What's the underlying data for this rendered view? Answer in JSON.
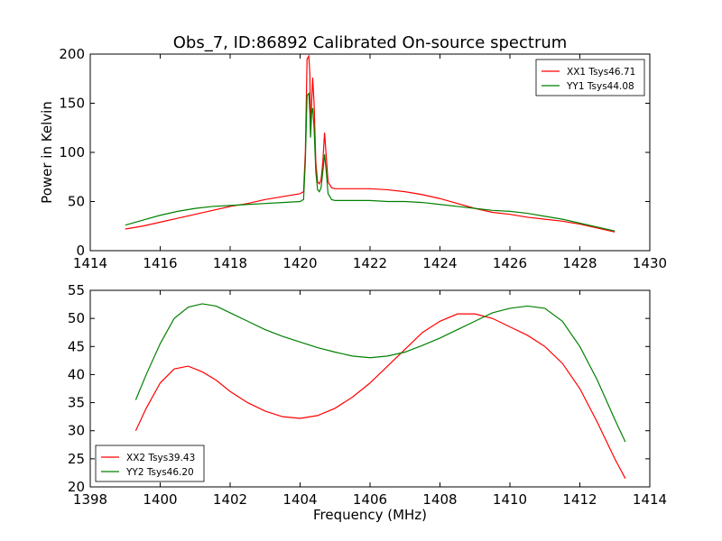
{
  "title": "Obs_7, ID:86892 Calibrated On-source spectrum",
  "chart_data": [
    {
      "type": "line",
      "ylabel": "Power in Kelvin",
      "xlabel": "",
      "xlim": [
        1414,
        1430
      ],
      "ylim": [
        0,
        200
      ],
      "xticks": [
        1414,
        1416,
        1418,
        1420,
        1422,
        1424,
        1426,
        1428,
        1430
      ],
      "yticks": [
        0,
        50,
        100,
        150,
        200
      ],
      "grid": false,
      "legend": "top-right",
      "series": [
        {
          "name": "XX1 Tsys46.71",
          "color": "#ff0000",
          "points": [
            [
              1415.0,
              22
            ],
            [
              1415.5,
              25
            ],
            [
              1416.0,
              29
            ],
            [
              1416.5,
              33
            ],
            [
              1417.0,
              37
            ],
            [
              1417.5,
              41
            ],
            [
              1418.0,
              45
            ],
            [
              1418.5,
              48
            ],
            [
              1419.0,
              52
            ],
            [
              1419.5,
              55
            ],
            [
              1420.0,
              58
            ],
            [
              1420.1,
              60
            ],
            [
              1420.15,
              100
            ],
            [
              1420.2,
              195
            ],
            [
              1420.25,
              198
            ],
            [
              1420.28,
              180
            ],
            [
              1420.3,
              120
            ],
            [
              1420.33,
              150
            ],
            [
              1420.36,
              176
            ],
            [
              1420.4,
              150
            ],
            [
              1420.45,
              90
            ],
            [
              1420.5,
              70
            ],
            [
              1420.55,
              68
            ],
            [
              1420.6,
              72
            ],
            [
              1420.65,
              90
            ],
            [
              1420.7,
              120
            ],
            [
              1420.75,
              95
            ],
            [
              1420.8,
              70
            ],
            [
              1420.9,
              64
            ],
            [
              1421.0,
              63
            ],
            [
              1421.5,
              63
            ],
            [
              1422.0,
              63
            ],
            [
              1422.5,
              62
            ],
            [
              1423.0,
              60
            ],
            [
              1423.5,
              57
            ],
            [
              1424.0,
              53
            ],
            [
              1424.5,
              48
            ],
            [
              1425.0,
              43
            ],
            [
              1425.5,
              39
            ],
            [
              1426.0,
              37
            ],
            [
              1426.5,
              34
            ],
            [
              1427.0,
              32
            ],
            [
              1427.5,
              30
            ],
            [
              1428.0,
              27
            ],
            [
              1428.5,
              23
            ],
            [
              1429.0,
              19
            ]
          ]
        },
        {
          "name": "YY1 Tsys44.08",
          "color": "#008000",
          "points": [
            [
              1415.0,
              26
            ],
            [
              1415.5,
              31
            ],
            [
              1416.0,
              36
            ],
            [
              1416.5,
              40
            ],
            [
              1417.0,
              43
            ],
            [
              1417.5,
              45
            ],
            [
              1418.0,
              46
            ],
            [
              1418.5,
              47
            ],
            [
              1419.0,
              48
            ],
            [
              1419.5,
              49
            ],
            [
              1420.0,
              50
            ],
            [
              1420.1,
              52
            ],
            [
              1420.15,
              90
            ],
            [
              1420.2,
              158
            ],
            [
              1420.25,
              160
            ],
            [
              1420.28,
              140
            ],
            [
              1420.3,
              115
            ],
            [
              1420.33,
              140
            ],
            [
              1420.36,
              145
            ],
            [
              1420.4,
              125
            ],
            [
              1420.45,
              80
            ],
            [
              1420.5,
              62
            ],
            [
              1420.55,
              60
            ],
            [
              1420.6,
              64
            ],
            [
              1420.65,
              80
            ],
            [
              1420.7,
              98
            ],
            [
              1420.75,
              80
            ],
            [
              1420.8,
              58
            ],
            [
              1420.9,
              52
            ],
            [
              1421.0,
              51
            ],
            [
              1421.5,
              51
            ],
            [
              1422.0,
              51
            ],
            [
              1422.5,
              50
            ],
            [
              1423.0,
              50
            ],
            [
              1423.5,
              49
            ],
            [
              1424.0,
              47
            ],
            [
              1424.5,
              45
            ],
            [
              1425.0,
              43
            ],
            [
              1425.5,
              41
            ],
            [
              1426.0,
              40
            ],
            [
              1426.5,
              38
            ],
            [
              1427.0,
              35
            ],
            [
              1427.5,
              32
            ],
            [
              1428.0,
              28
            ],
            [
              1428.5,
              24
            ],
            [
              1429.0,
              20
            ]
          ]
        }
      ]
    },
    {
      "type": "line",
      "ylabel": "",
      "xlabel": "Frequency (MHz)",
      "xlim": [
        1398,
        1414
      ],
      "ylim": [
        20,
        55
      ],
      "xticks": [
        1398,
        1400,
        1402,
        1404,
        1406,
        1408,
        1410,
        1412,
        1414
      ],
      "yticks": [
        20,
        25,
        30,
        35,
        40,
        45,
        50,
        55
      ],
      "grid": false,
      "legend": "bottom-left",
      "series": [
        {
          "name": "XX2 Tsys39.43",
          "color": "#ff0000",
          "points": [
            [
              1399.3,
              30
            ],
            [
              1399.6,
              34
            ],
            [
              1400.0,
              38.5
            ],
            [
              1400.4,
              41
            ],
            [
              1400.8,
              41.5
            ],
            [
              1401.2,
              40.5
            ],
            [
              1401.6,
              39
            ],
            [
              1402.0,
              37
            ],
            [
              1402.5,
              35
            ],
            [
              1403.0,
              33.5
            ],
            [
              1403.5,
              32.5
            ],
            [
              1404.0,
              32.2
            ],
            [
              1404.5,
              32.7
            ],
            [
              1405.0,
              34
            ],
            [
              1405.5,
              36
            ],
            [
              1406.0,
              38.5
            ],
            [
              1406.5,
              41.5
            ],
            [
              1407.0,
              44.5
            ],
            [
              1407.5,
              47.5
            ],
            [
              1408.0,
              49.5
            ],
            [
              1408.5,
              50.8
            ],
            [
              1409.0,
              50.8
            ],
            [
              1409.5,
              50
            ],
            [
              1410.0,
              48.5
            ],
            [
              1410.5,
              47
            ],
            [
              1411.0,
              45
            ],
            [
              1411.5,
              42
            ],
            [
              1412.0,
              37.5
            ],
            [
              1412.5,
              31.5
            ],
            [
              1413.0,
              25
            ],
            [
              1413.3,
              21.5
            ]
          ]
        },
        {
          "name": "YY2 Tsys46.20",
          "color": "#008000",
          "points": [
            [
              1399.3,
              35.5
            ],
            [
              1399.6,
              40
            ],
            [
              1400.0,
              45.5
            ],
            [
              1400.4,
              50
            ],
            [
              1400.8,
              52
            ],
            [
              1401.2,
              52.6
            ],
            [
              1401.6,
              52.2
            ],
            [
              1402.0,
              51
            ],
            [
              1402.5,
              49.5
            ],
            [
              1403.0,
              48
            ],
            [
              1403.5,
              46.8
            ],
            [
              1404.0,
              45.8
            ],
            [
              1404.5,
              44.8
            ],
            [
              1405.0,
              44
            ],
            [
              1405.5,
              43.3
            ],
            [
              1406.0,
              43
            ],
            [
              1406.5,
              43.3
            ],
            [
              1407.0,
              44
            ],
            [
              1407.5,
              45.2
            ],
            [
              1408.0,
              46.5
            ],
            [
              1408.5,
              48
            ],
            [
              1409.0,
              49.5
            ],
            [
              1409.5,
              51
            ],
            [
              1410.0,
              51.8
            ],
            [
              1410.5,
              52.2
            ],
            [
              1411.0,
              51.8
            ],
            [
              1411.5,
              49.5
            ],
            [
              1412.0,
              45
            ],
            [
              1412.5,
              39
            ],
            [
              1413.0,
              32
            ],
            [
              1413.3,
              28
            ]
          ]
        }
      ]
    }
  ]
}
